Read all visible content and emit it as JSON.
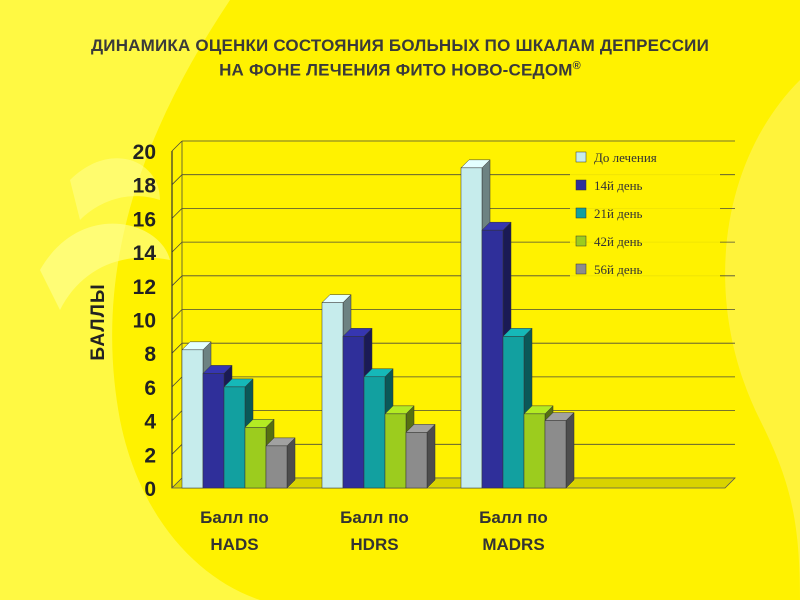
{
  "title_line1": "ДИНАМИКА ОЦЕНКИ СОСТОЯНИЯ БОЛЬНЫХ ПО ШКАЛАМ ДЕПРЕССИИ",
  "title_line2": "НА ФОНЕ ЛЕЧЕНИЯ ФИТО НОВО-СЕДОМ",
  "title_mark": "®",
  "chart_data": {
    "type": "bar",
    "title": "ДИНАМИКА ОЦЕНКИ СОСТОЯНИЯ БОЛЬНЫХ ПО ШКАЛАМ ДЕПРЕССИИ НА ФОНЕ ЛЕЧЕНИЯ ФИТО НОВО-СЕДОМ®",
    "ylabel": "БАЛЛЫ",
    "xlabel": "",
    "ylim": [
      0,
      20
    ],
    "yticks": [
      "0",
      "2",
      "4",
      "6",
      "8",
      "10",
      "12",
      "14",
      "16",
      "18",
      "20"
    ],
    "grid": true,
    "legend_position": "top-right",
    "categories": [
      [
        "Балл по",
        "HADS"
      ],
      [
        "Балл по",
        "HDRS"
      ],
      [
        "Балл по",
        "MADRS"
      ]
    ],
    "series": [
      {
        "name": "До лечения",
        "color": "#c6ecec",
        "values": [
          8.2,
          11.0,
          19.0
        ]
      },
      {
        "name": "14й день",
        "color": "#2f2f9a",
        "values": [
          6.8,
          9.0,
          15.3
        ]
      },
      {
        "name": "21й день",
        "color": "#12a0a0",
        "values": [
          6.0,
          6.6,
          9.0
        ]
      },
      {
        "name": "42й день",
        "color": "#9ccc1e",
        "values": [
          3.6,
          4.4,
          4.4
        ]
      },
      {
        "name": "56й день",
        "color": "#8c8c8c",
        "values": [
          2.5,
          3.3,
          4.0
        ]
      }
    ]
  }
}
